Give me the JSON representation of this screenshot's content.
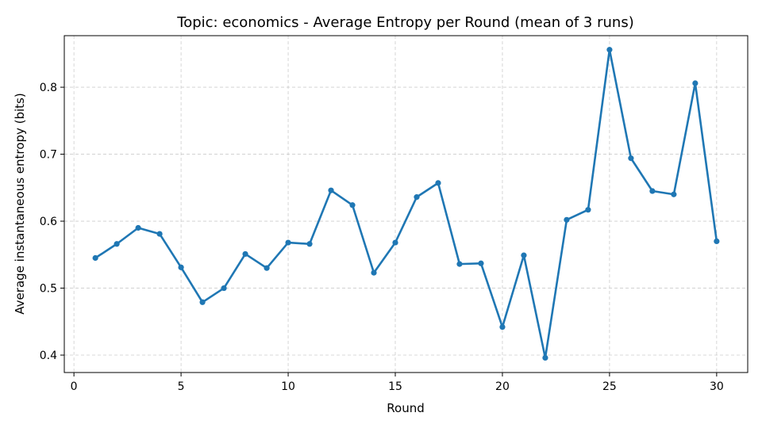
{
  "chart_data": {
    "type": "line",
    "title": "Topic: economics - Average Entropy per Round (mean of 3 runs)",
    "xlabel": "Round",
    "ylabel": "Average instantaneous entropy (bits)",
    "xlim": [
      -0.45,
      31.45
    ],
    "ylim": [
      0.374,
      0.877
    ],
    "xticks": [
      0,
      5,
      10,
      15,
      20,
      25,
      30
    ],
    "yticks": [
      0.4,
      0.5,
      0.6,
      0.7,
      0.8
    ],
    "ytick_labels": [
      "0.4",
      "0.5",
      "0.6",
      "0.7",
      "0.8"
    ],
    "grid": true,
    "line_color": "#1f77b4",
    "series": [
      {
        "x": [
          1,
          2,
          3,
          4,
          5,
          6,
          7,
          8,
          9,
          10,
          11,
          12,
          13,
          14,
          15,
          16,
          17,
          18,
          19,
          20,
          21,
          22,
          23,
          24,
          25,
          26,
          27,
          28,
          29,
          30
        ],
        "values": [
          0.545,
          0.566,
          0.59,
          0.581,
          0.531,
          0.479,
          0.5,
          0.551,
          0.53,
          0.568,
          0.566,
          0.646,
          0.624,
          0.523,
          0.568,
          0.636,
          0.657,
          0.536,
          0.537,
          0.442,
          0.549,
          0.396,
          0.602,
          0.617,
          0.856,
          0.694,
          0.645,
          0.64,
          0.806,
          0.57
        ]
      }
    ]
  }
}
